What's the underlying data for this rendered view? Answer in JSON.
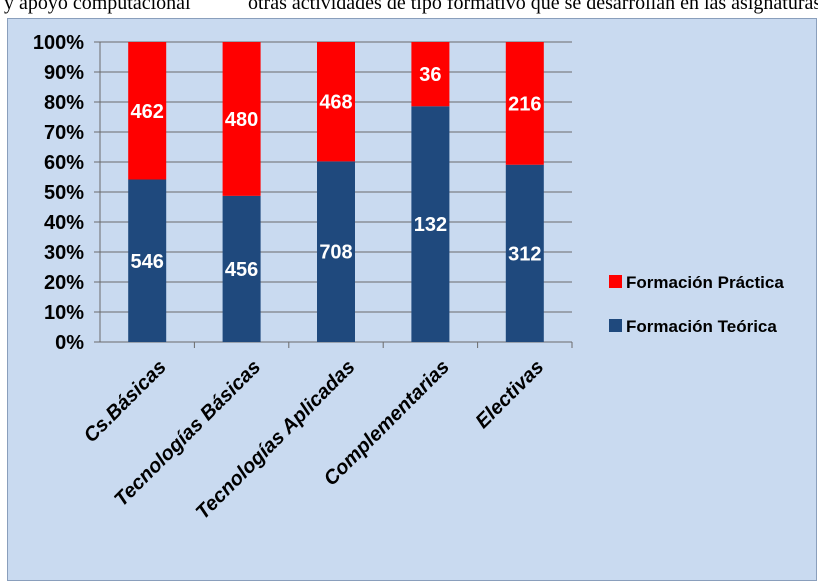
{
  "top_strip": {
    "left": "y apoyo computacional",
    "right": "otras actividades de tipo formativo que se desarrollan en las asignaturas del Plan de Estudios y del"
  },
  "colors": {
    "practica": "#ff0000",
    "teorica": "#1f497d",
    "grid": "#6b6b6b",
    "background": "#c9daf0"
  },
  "chart_data": {
    "type": "bar",
    "stacked": "percent",
    "categories": [
      "Cs.Básicas",
      "Tecnologías Básicas",
      "Tecnologías Aplicadas",
      "Complementarias",
      "Electivas"
    ],
    "series": [
      {
        "name": "Formación Teórica",
        "values": [
          546,
          456,
          708,
          132,
          312
        ]
      },
      {
        "name": "Formación Práctica",
        "values": [
          462,
          480,
          468,
          36,
          216
        ]
      }
    ],
    "y_ticks": [
      "0%",
      "10%",
      "20%",
      "30%",
      "40%",
      "50%",
      "60%",
      "70%",
      "80%",
      "90%",
      "100%"
    ],
    "ylim": [
      0,
      100
    ],
    "grid": true,
    "legend_position": "right",
    "legend": [
      "Formación Práctica",
      "Formación Teórica"
    ]
  }
}
